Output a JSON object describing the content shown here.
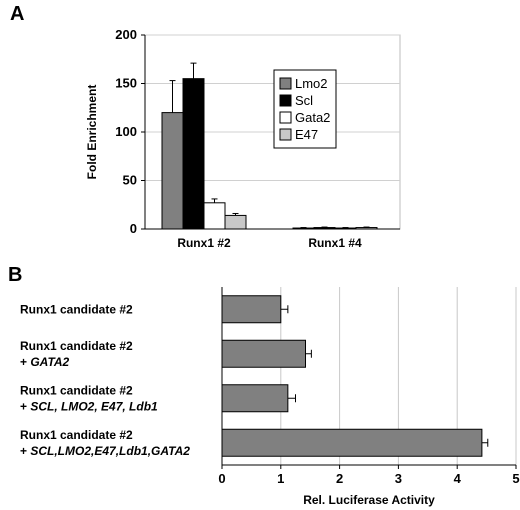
{
  "panels": {
    "a_label": "A",
    "b_label": "B"
  },
  "colors": {
    "lmo2": "#808080",
    "scl": "#000000",
    "gata2": "#ffffff",
    "e47": "#c8c8c8",
    "bar_b": "#808080"
  },
  "chart_data": [
    {
      "type": "bar",
      "title": "",
      "xlabel": "",
      "ylabel": "Fold Enrichment",
      "ylim": [
        0,
        200
      ],
      "yticks": [
        "0",
        "50",
        "100",
        "150",
        "200"
      ],
      "categories": [
        "Runx1 #2",
        "Runx1 #4"
      ],
      "legend_position": "right",
      "series": [
        {
          "name": "Lmo2",
          "values": [
            120,
            1
          ],
          "errors": [
            33,
            0.5
          ]
        },
        {
          "name": "Scl",
          "values": [
            155,
            1.5
          ],
          "errors": [
            16,
            0.5
          ]
        },
        {
          "name": "Gata2",
          "values": [
            27,
            1
          ],
          "errors": [
            4,
            0.5
          ]
        },
        {
          "name": "E47",
          "values": [
            14,
            1.5
          ],
          "errors": [
            2,
            0.5
          ]
        }
      ]
    },
    {
      "type": "bar",
      "orientation": "horizontal",
      "title": "",
      "xlabel": "Rel. Luciferase Activity",
      "xlim": [
        0,
        5
      ],
      "xticks": [
        "0",
        "1",
        "2",
        "3",
        "4",
        "5"
      ],
      "categories": [
        {
          "line1": "Runx1 candidate #2",
          "line2_prefix": "",
          "line2_italic": ""
        },
        {
          "line1": "Runx1 candidate #2",
          "line2_prefix": "+ ",
          "line2_italic": "GATA2"
        },
        {
          "line1": "Runx1 candidate #2",
          "line2_prefix": "+ ",
          "line2_italic": "SCL, LMO2, E47, Ldb1"
        },
        {
          "line1": "Runx1 candidate #2",
          "line2_prefix": "+ ",
          "line2_italic": "SCL,LMO2,E47,Ldb1,GATA2"
        }
      ],
      "values": [
        1.0,
        1.42,
        1.12,
        4.42
      ],
      "errors": [
        0.12,
        0.1,
        0.13,
        0.1
      ]
    }
  ]
}
